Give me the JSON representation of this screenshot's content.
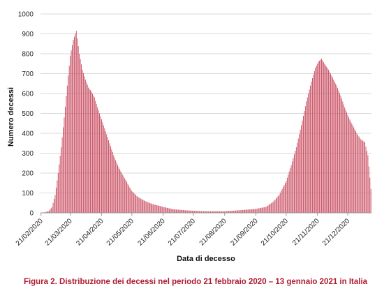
{
  "caption": "Figura 2. Distribuzione dei decessi nel periodo 21 febbraio 2020 – 13 gennaio 2021 in Italia",
  "colors": {
    "bar": "#c84a5e",
    "grid": "#d9d9d9",
    "axis": "#9a9a9a",
    "caption": "#b01a32"
  },
  "chart_data": {
    "type": "bar",
    "xlabel": "Data di decesso",
    "ylabel": "Numero decessi",
    "ylim": [
      0,
      1000
    ],
    "y_ticks": [
      0,
      100,
      200,
      300,
      400,
      500,
      600,
      700,
      800,
      900,
      1000
    ],
    "x_tick_labels": [
      "21/02/2020",
      "21/03/2020",
      "21/04/2020",
      "21/05/2020",
      "21/06/2020",
      "21/07/2020",
      "21/08/2020",
      "21/09/2020",
      "21/10/2020",
      "21/11/2020",
      "21/12/2020"
    ],
    "x_tick_dates": [
      "2020-02-21",
      "2020-03-21",
      "2020-04-21",
      "2020-05-21",
      "2020-06-21",
      "2020-07-21",
      "2020-08-21",
      "2020-09-21",
      "2020-10-21",
      "2020-11-21",
      "2020-12-21"
    ],
    "x_range": [
      "2020-02-21",
      "2021-01-13"
    ],
    "grid": "horizontal",
    "legend": "none",
    "series": [
      {
        "values": [
          {
            "date": "2020-02-21",
            "y": 1
          },
          {
            "date": "2020-02-25",
            "y": 3
          },
          {
            "date": "2020-02-29",
            "y": 10
          },
          {
            "date": "2020-03-03",
            "y": 30
          },
          {
            "date": "2020-03-06",
            "y": 90
          },
          {
            "date": "2020-03-09",
            "y": 200
          },
          {
            "date": "2020-03-12",
            "y": 330
          },
          {
            "date": "2020-03-15",
            "y": 480
          },
          {
            "date": "2020-03-18",
            "y": 640
          },
          {
            "date": "2020-03-21",
            "y": 790
          },
          {
            "date": "2020-03-24",
            "y": 870
          },
          {
            "date": "2020-03-27",
            "y": 915
          },
          {
            "date": "2020-03-30",
            "y": 800
          },
          {
            "date": "2020-04-02",
            "y": 720
          },
          {
            "date": "2020-04-05",
            "y": 670
          },
          {
            "date": "2020-04-08",
            "y": 630
          },
          {
            "date": "2020-04-11",
            "y": 610
          },
          {
            "date": "2020-04-14",
            "y": 580
          },
          {
            "date": "2020-04-17",
            "y": 530
          },
          {
            "date": "2020-04-21",
            "y": 470
          },
          {
            "date": "2020-04-25",
            "y": 410
          },
          {
            "date": "2020-04-29",
            "y": 350
          },
          {
            "date": "2020-05-03",
            "y": 290
          },
          {
            "date": "2020-05-07",
            "y": 240
          },
          {
            "date": "2020-05-11",
            "y": 200
          },
          {
            "date": "2020-05-15",
            "y": 165
          },
          {
            "date": "2020-05-21",
            "y": 110
          },
          {
            "date": "2020-05-27",
            "y": 80
          },
          {
            "date": "2020-06-03",
            "y": 60
          },
          {
            "date": "2020-06-10",
            "y": 45
          },
          {
            "date": "2020-06-21",
            "y": 30
          },
          {
            "date": "2020-07-01",
            "y": 18
          },
          {
            "date": "2020-07-15",
            "y": 12
          },
          {
            "date": "2020-08-01",
            "y": 8
          },
          {
            "date": "2020-08-21",
            "y": 8
          },
          {
            "date": "2020-09-05",
            "y": 13
          },
          {
            "date": "2020-09-21",
            "y": 20
          },
          {
            "date": "2020-10-01",
            "y": 30
          },
          {
            "date": "2020-10-08",
            "y": 55
          },
          {
            "date": "2020-10-14",
            "y": 90
          },
          {
            "date": "2020-10-21",
            "y": 160
          },
          {
            "date": "2020-10-26",
            "y": 240
          },
          {
            "date": "2020-10-31",
            "y": 330
          },
          {
            "date": "2020-11-05",
            "y": 440
          },
          {
            "date": "2020-11-10",
            "y": 560
          },
          {
            "date": "2020-11-15",
            "y": 660
          },
          {
            "date": "2020-11-19",
            "y": 730
          },
          {
            "date": "2020-11-22",
            "y": 760
          },
          {
            "date": "2020-11-25",
            "y": 775
          },
          {
            "date": "2020-11-28",
            "y": 750
          },
          {
            "date": "2020-12-02",
            "y": 720
          },
          {
            "date": "2020-12-06",
            "y": 680
          },
          {
            "date": "2020-12-10",
            "y": 640
          },
          {
            "date": "2020-12-14",
            "y": 590
          },
          {
            "date": "2020-12-18",
            "y": 530
          },
          {
            "date": "2020-12-22",
            "y": 480
          },
          {
            "date": "2020-12-26",
            "y": 440
          },
          {
            "date": "2020-12-30",
            "y": 400
          },
          {
            "date": "2021-01-03",
            "y": 370
          },
          {
            "date": "2021-01-07",
            "y": 355
          },
          {
            "date": "2021-01-10",
            "y": 290
          },
          {
            "date": "2021-01-13",
            "y": 120
          }
        ]
      }
    ]
  }
}
